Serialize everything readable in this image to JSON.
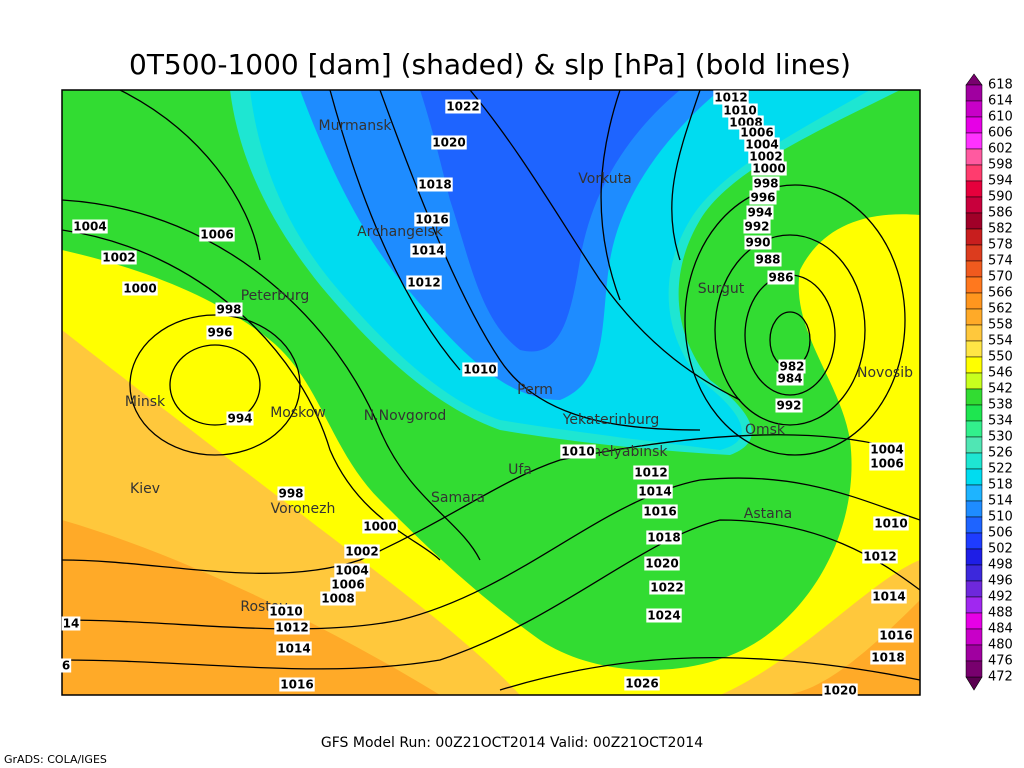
{
  "title": "0T500-1000 [dam] (shaded) & slp [hPa] (bold lines)",
  "colorbar": {
    "ticks": [
      618,
      614,
      610,
      606,
      602,
      598,
      594,
      590,
      586,
      582,
      578,
      574,
      570,
      566,
      562,
      558,
      554,
      550,
      546,
      542,
      538,
      534,
      530,
      526,
      522,
      518,
      514,
      510,
      506,
      502,
      498,
      496,
      492,
      488,
      484,
      480,
      476,
      472
    ],
    "colors": [
      "#a000a0",
      "#c800c8",
      "#e600e6",
      "#ff32ff",
      "#ff5aa0",
      "#ff3c6e",
      "#e6003c",
      "#c8003c",
      "#a00028",
      "#c81e1e",
      "#dc3c1e",
      "#f05a1e",
      "#ff781e",
      "#ff961e",
      "#ffaa28",
      "#ffc83c",
      "#ffe646",
      "#ffff00",
      "#c8ff1e",
      "#32dc32",
      "#1ee650",
      "#32f08c",
      "#50e6b4",
      "#1ee6d2",
      "#00dcf0",
      "#1eb4ff",
      "#1e8cff",
      "#1e64ff",
      "#1e3cff",
      "#1e1ee6",
      "#3c28dc",
      "#6e28dc",
      "#a028f0",
      "#e600e6",
      "#c800c8",
      "#a000a0",
      "#78006e"
    ]
  },
  "cities": [
    "Murmansk",
    "Vorkuta",
    "Archangelsk",
    "Surgut",
    "Peterburg",
    "Perm",
    "Novosib",
    "Minsk",
    "Moskow",
    "N.Novgorod",
    "Yekaterinburg",
    "Omsk",
    "Chelyabinsk",
    "Ufa",
    "Kiev",
    "Samara",
    "Voronezh",
    "Astana",
    "Rostov"
  ],
  "isobar_labels": [
    1022,
    1020,
    1018,
    1016,
    1014,
    1012,
    1010,
    1012,
    1010,
    1008,
    1006,
    1004,
    1002,
    1000,
    998,
    996,
    994,
    992,
    990,
    988,
    986,
    982,
    984,
    992,
    1004,
    1006,
    1002,
    1000,
    998,
    996,
    994,
    998,
    1000,
    1002,
    1004,
    1006,
    1008,
    1010,
    1012,
    1014,
    1016,
    1010,
    1012,
    1014,
    1016,
    1018,
    1020,
    1022,
    1024,
    1026,
    1004,
    1006,
    1010,
    1012,
    1014,
    1016,
    1018,
    1020,
    14,
    6
  ],
  "footer": {
    "run": "GFS Model Run: 00Z21OCT2014  Valid: 00Z21OCT2014",
    "credit": "GrADS: COLA/IGES"
  }
}
